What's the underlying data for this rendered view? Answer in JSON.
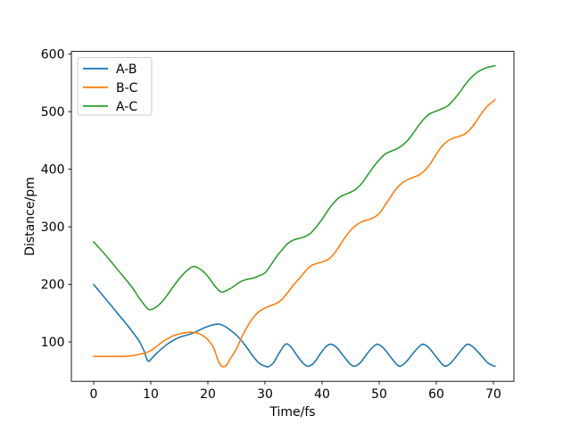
{
  "figure": {
    "background": "#ffffff"
  },
  "chart_data": {
    "type": "line",
    "title": "",
    "xlabel": "Time/fs",
    "ylabel": "Distance/pm",
    "xlim": [
      -3.9,
      73.6
    ],
    "ylim": [
      31.7,
      604.6
    ],
    "xticks": [
      0,
      10,
      20,
      30,
      40,
      50,
      60,
      70
    ],
    "yticks": [
      100,
      200,
      300,
      400,
      500,
      600
    ],
    "grid": false,
    "axis_color": "#000000",
    "legend": {
      "position": "upper-left",
      "entries": [
        "A-B",
        "B-C",
        "A-C"
      ]
    },
    "series": [
      {
        "name": "A-B",
        "color": "#1f77b4",
        "points": [
          [
            0,
            200
          ],
          [
            1,
            188
          ],
          [
            2,
            176
          ],
          [
            3,
            164
          ],
          [
            4,
            152
          ],
          [
            5,
            140
          ],
          [
            6,
            128
          ],
          [
            7,
            115
          ],
          [
            8,
            101
          ],
          [
            8.8,
            85
          ],
          [
            9.5,
            67
          ],
          [
            10.3,
            73
          ],
          [
            11,
            80
          ],
          [
            12,
            89
          ],
          [
            13,
            97
          ],
          [
            14,
            103
          ],
          [
            15,
            108
          ],
          [
            16,
            111
          ],
          [
            17,
            114
          ],
          [
            18,
            118
          ],
          [
            19,
            123
          ],
          [
            20,
            127
          ],
          [
            21,
            130
          ],
          [
            22,
            131
          ],
          [
            23,
            127
          ],
          [
            24,
            120
          ],
          [
            25,
            112
          ],
          [
            26,
            101
          ],
          [
            27,
            88
          ],
          [
            28,
            74
          ],
          [
            29,
            63
          ],
          [
            30,
            58
          ],
          [
            30.6,
            57
          ],
          [
            31.5,
            64
          ],
          [
            32.5,
            81
          ],
          [
            33.6,
            96
          ],
          [
            34.5,
            92
          ],
          [
            35.5,
            78
          ],
          [
            36.8,
            62
          ],
          [
            37.7,
            58
          ],
          [
            38.7,
            65
          ],
          [
            39.8,
            81
          ],
          [
            40.8,
            93
          ],
          [
            41.6,
            96
          ],
          [
            42.6,
            90
          ],
          [
            43.8,
            75
          ],
          [
            45,
            61
          ],
          [
            45.8,
            58
          ],
          [
            46.8,
            65
          ],
          [
            48,
            81
          ],
          [
            49,
            92
          ],
          [
            49.7,
            96
          ],
          [
            50.7,
            90
          ],
          [
            52,
            74
          ],
          [
            53,
            62
          ],
          [
            53.7,
            58
          ],
          [
            54.7,
            65
          ],
          [
            56,
            81
          ],
          [
            57,
            92
          ],
          [
            57.7,
            96
          ],
          [
            58.7,
            90
          ],
          [
            60,
            74
          ],
          [
            61,
            62
          ],
          [
            61.7,
            58
          ],
          [
            62.7,
            65
          ],
          [
            64,
            81
          ],
          [
            65,
            93
          ],
          [
            65.6,
            96
          ],
          [
            66.6,
            90
          ],
          [
            68,
            75
          ],
          [
            69,
            64
          ],
          [
            70,
            58.5
          ],
          [
            70.3,
            58
          ]
        ]
      },
      {
        "name": "B-C",
        "color": "#ff7f0e",
        "points": [
          [
            0,
            75
          ],
          [
            2,
            75
          ],
          [
            4,
            75
          ],
          [
            5,
            75
          ],
          [
            6,
            75.5
          ],
          [
            7,
            76.5
          ],
          [
            8,
            78.5
          ],
          [
            9,
            81
          ],
          [
            10,
            85
          ],
          [
            11,
            92
          ],
          [
            12,
            100
          ],
          [
            13,
            106
          ],
          [
            14,
            111
          ],
          [
            15,
            114
          ],
          [
            16,
            116
          ],
          [
            17,
            117
          ],
          [
            18,
            116
          ],
          [
            19,
            112
          ],
          [
            20,
            104
          ],
          [
            21,
            90
          ],
          [
            21.8,
            68
          ],
          [
            22.4,
            58
          ],
          [
            23.2,
            59
          ],
          [
            24,
            72
          ],
          [
            25,
            88
          ],
          [
            26,
            110
          ],
          [
            27,
            128
          ],
          [
            28,
            143
          ],
          [
            29,
            153
          ],
          [
            30,
            159
          ],
          [
            31,
            163
          ],
          [
            32,
            167
          ],
          [
            33,
            174
          ],
          [
            34,
            186
          ],
          [
            35,
            199
          ],
          [
            36,
            210
          ],
          [
            37,
            222
          ],
          [
            38,
            232
          ],
          [
            39,
            236
          ],
          [
            40,
            239
          ],
          [
            41,
            243
          ],
          [
            42,
            252
          ],
          [
            43,
            266
          ],
          [
            44,
            281
          ],
          [
            45,
            294
          ],
          [
            46,
            303
          ],
          [
            47,
            309
          ],
          [
            48,
            312
          ],
          [
            49,
            316
          ],
          [
            50,
            323
          ],
          [
            51,
            337
          ],
          [
            52,
            352
          ],
          [
            53,
            366
          ],
          [
            54,
            376
          ],
          [
            55,
            382
          ],
          [
            56,
            386
          ],
          [
            57,
            390
          ],
          [
            58,
            398
          ],
          [
            59,
            410
          ],
          [
            60,
            426
          ],
          [
            61,
            440
          ],
          [
            62,
            449
          ],
          [
            63,
            454
          ],
          [
            64,
            457
          ],
          [
            65,
            461
          ],
          [
            66,
            470
          ],
          [
            67,
            483
          ],
          [
            68,
            498
          ],
          [
            69,
            510
          ],
          [
            70,
            518
          ],
          [
            70.3,
            521
          ]
        ]
      },
      {
        "name": "A-C",
        "color": "#2ca02c",
        "points": [
          [
            0,
            274
          ],
          [
            1,
            263
          ],
          [
            2,
            252
          ],
          [
            3,
            240
          ],
          [
            4,
            228
          ],
          [
            5,
            216
          ],
          [
            6,
            204
          ],
          [
            7,
            191
          ],
          [
            8,
            176
          ],
          [
            9,
            163
          ],
          [
            9.8,
            156
          ],
          [
            11,
            161
          ],
          [
            12,
            170
          ],
          [
            13,
            183
          ],
          [
            14,
            197
          ],
          [
            15,
            210
          ],
          [
            16,
            221
          ],
          [
            17,
            229
          ],
          [
            17.5,
            231
          ],
          [
            18,
            230
          ],
          [
            19,
            224
          ],
          [
            20,
            214
          ],
          [
            21,
            200
          ],
          [
            22,
            189
          ],
          [
            22.7,
            187
          ],
          [
            24,
            193
          ],
          [
            25,
            200
          ],
          [
            26,
            206
          ],
          [
            27,
            209
          ],
          [
            28,
            211
          ],
          [
            29,
            215
          ],
          [
            30,
            220
          ],
          [
            31,
            233
          ],
          [
            32,
            248
          ],
          [
            33,
            260
          ],
          [
            34,
            271
          ],
          [
            35,
            277
          ],
          [
            36,
            280
          ],
          [
            37,
            283
          ],
          [
            38,
            289
          ],
          [
            39,
            300
          ],
          [
            40,
            313
          ],
          [
            41,
            328
          ],
          [
            42,
            341
          ],
          [
            43,
            351
          ],
          [
            44,
            356
          ],
          [
            45,
            360
          ],
          [
            46,
            366
          ],
          [
            47,
            376
          ],
          [
            48,
            390
          ],
          [
            49,
            404
          ],
          [
            50,
            416
          ],
          [
            51,
            426
          ],
          [
            52,
            431
          ],
          [
            53,
            435
          ],
          [
            54,
            441
          ],
          [
            55,
            450
          ],
          [
            56,
            463
          ],
          [
            57,
            477
          ],
          [
            58,
            489
          ],
          [
            59,
            497
          ],
          [
            60,
            501
          ],
          [
            61,
            505
          ],
          [
            62,
            510
          ],
          [
            63,
            520
          ],
          [
            64,
            532
          ],
          [
            65,
            546
          ],
          [
            66,
            558
          ],
          [
            67,
            567
          ],
          [
            68,
            573
          ],
          [
            69,
            577
          ],
          [
            70,
            579
          ],
          [
            70.3,
            580
          ]
        ]
      }
    ]
  }
}
